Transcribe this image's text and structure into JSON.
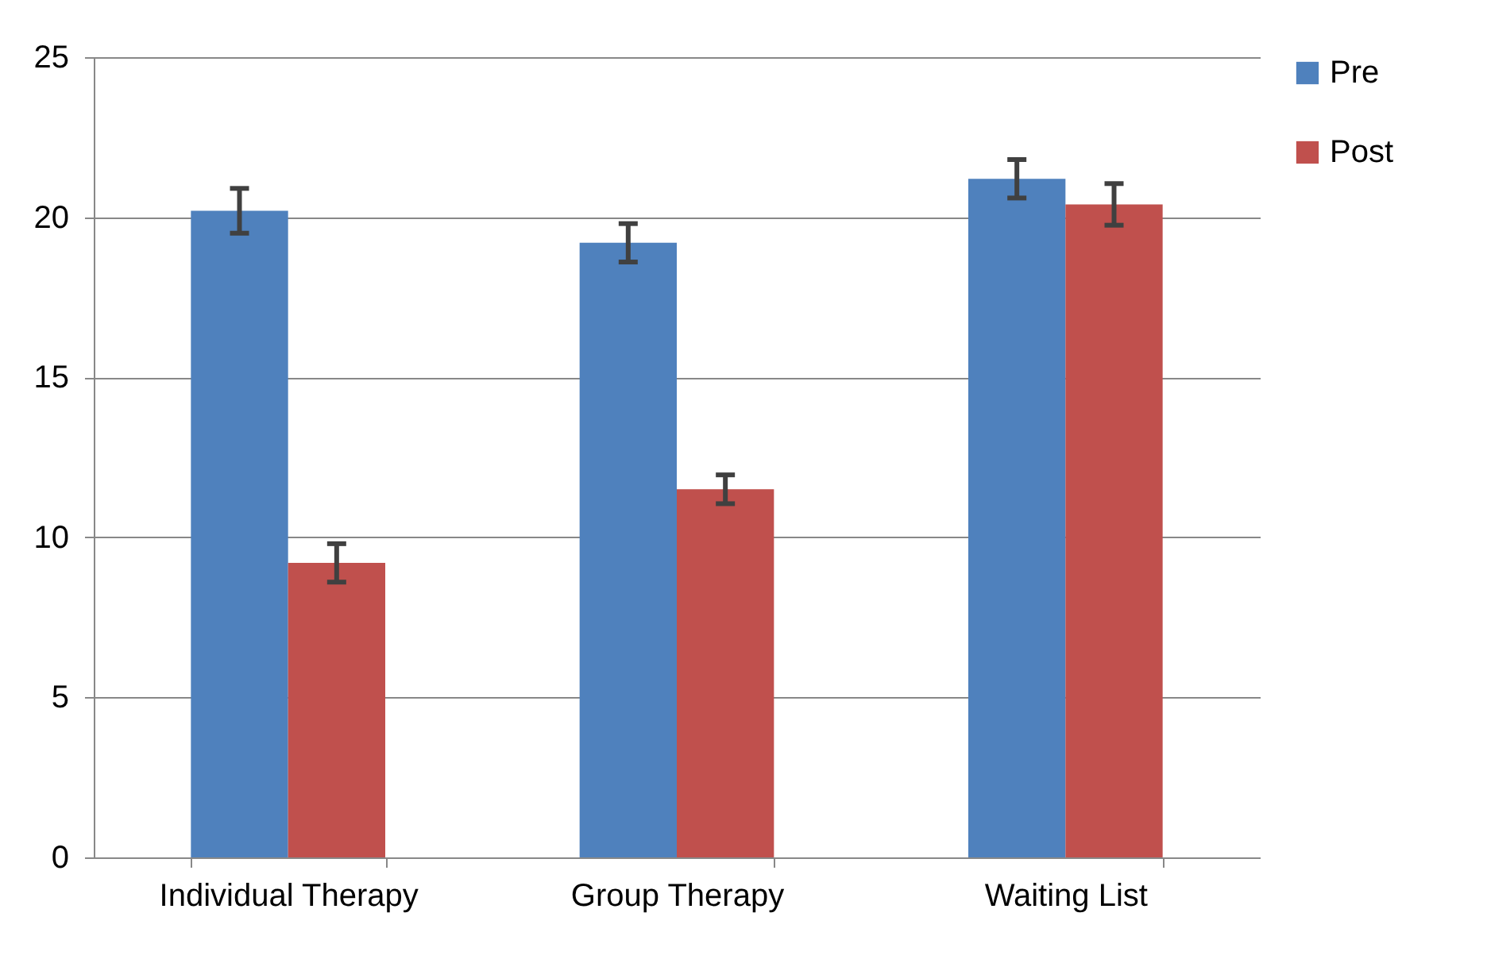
{
  "chart_data": {
    "type": "bar",
    "categories": [
      "Individual Therapy",
      "Group Therapy",
      "Waiting List"
    ],
    "series": [
      {
        "name": "Pre",
        "color": "#4f81bd",
        "values": [
          20.2,
          19.2,
          21.2
        ],
        "errors": [
          0.7,
          0.6,
          0.6
        ]
      },
      {
        "name": "Post",
        "color": "#c0504d",
        "values": [
          9.2,
          11.5,
          20.4
        ],
        "errors": [
          0.6,
          0.45,
          0.65
        ]
      }
    ],
    "ylim": [
      0,
      25
    ],
    "yticks": [
      0,
      5,
      10,
      15,
      20,
      25
    ],
    "grid": "y",
    "legend": "right"
  }
}
